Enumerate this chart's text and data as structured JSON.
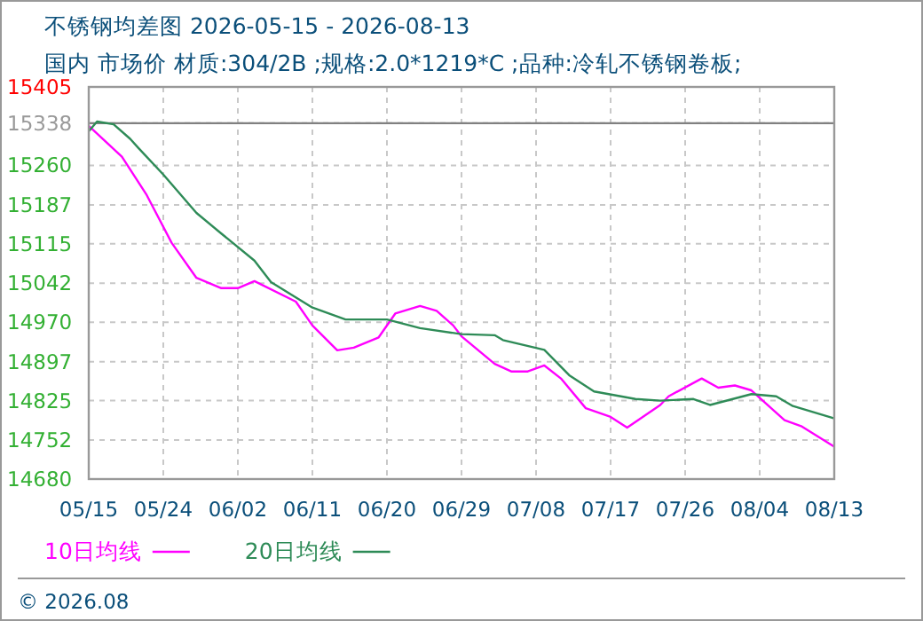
{
  "chart_data": {
    "type": "line",
    "title": "不锈钢均差图 2026-05-15 - 2026-08-13",
    "subtitle": "国内 市场价 材质:304/2B ;规格:2.0*1219*C ;品种:冷轧不锈钢卷板;",
    "annotations": [
      "© 2026.08"
    ],
    "xlim": [
      "2026-05-15",
      "2026-08-13"
    ],
    "xticks": [
      {
        "value": "2026-05-15",
        "label": "05/15"
      },
      {
        "value": "2026-05-24",
        "label": "05/24"
      },
      {
        "value": "2026-06-02",
        "label": "06/02"
      },
      {
        "value": "2026-06-11",
        "label": "06/11"
      },
      {
        "value": "2026-06-20",
        "label": "06/20"
      },
      {
        "value": "2026-06-29",
        "label": "06/29"
      },
      {
        "value": "2026-07-08",
        "label": "07/08"
      },
      {
        "value": "2026-07-17",
        "label": "07/17"
      },
      {
        "value": "2026-07-26",
        "label": "07/26"
      },
      {
        "value": "2026-08-04",
        "label": "08/04"
      },
      {
        "value": "2026-08-13",
        "label": "08/13"
      }
    ],
    "ylim": [
      14680,
      15405
    ],
    "yticks": [
      14680,
      14752,
      14825,
      14897,
      14970,
      15042,
      15115,
      15187,
      15260,
      15338,
      15405
    ],
    "grid": true,
    "legend": "bottom left",
    "marker": "none",
    "line_style": "solid",
    "ref_lines": [
      {
        "axis": "y",
        "value": 15338,
        "color": "#808080"
      }
    ],
    "series": [
      {
        "name": "10日均线",
        "color": "#ff00ff",
        "x": [
          "2026-05-15",
          "2026-05-19",
          "2026-05-22",
          "2026-05-25",
          "2026-05-28",
          "2026-05-31",
          "2026-06-02",
          "2026-06-04",
          "2026-06-09",
          "2026-06-11",
          "2026-06-14",
          "2026-06-16",
          "2026-06-19",
          "2026-06-21",
          "2026-06-24",
          "2026-06-26",
          "2026-06-28",
          "2026-06-29",
          "2026-07-03",
          "2026-07-05",
          "2026-07-07",
          "2026-07-09",
          "2026-07-11",
          "2026-07-14",
          "2026-07-17",
          "2026-07-19",
          "2026-07-23",
          "2026-07-24",
          "2026-07-28",
          "2026-07-30",
          "2026-08-01",
          "2026-08-03",
          "2026-08-07",
          "2026-08-09",
          "2026-08-13"
        ],
        "values": [
          15333,
          15276,
          15205,
          15117,
          15052,
          15033,
          15033,
          15046,
          15008,
          14964,
          14918,
          14923,
          14942,
          14986,
          15000,
          14991,
          14964,
          14944,
          14893,
          14879,
          14879,
          14890,
          14866,
          14811,
          14795,
          14775,
          14817,
          14833,
          14866,
          14849,
          14853,
          14844,
          14789,
          14778,
          14740
        ]
      },
      {
        "name": "20日均线",
        "color": "#2e8b57",
        "x": [
          "2026-05-15",
          "2026-05-16",
          "2026-05-18",
          "2026-05-20",
          "2026-05-21",
          "2026-05-24",
          "2026-05-28",
          "2026-05-31",
          "2026-06-04",
          "2026-06-06",
          "2026-06-11",
          "2026-06-15",
          "2026-06-20",
          "2026-06-24",
          "2026-06-29",
          "2026-07-03",
          "2026-07-04",
          "2026-07-09",
          "2026-07-12",
          "2026-07-15",
          "2026-07-20",
          "2026-07-23",
          "2026-07-27",
          "2026-07-29",
          "2026-08-03",
          "2026-08-06",
          "2026-08-08",
          "2026-08-13"
        ],
        "values": [
          15323,
          15341,
          15336,
          15309,
          15292,
          15243,
          15172,
          15134,
          15084,
          15044,
          14997,
          14975,
          14975,
          14959,
          14948,
          14946,
          14937,
          14919,
          14872,
          14842,
          14828,
          14825,
          14828,
          14817,
          14837,
          14833,
          14815,
          14792
        ]
      }
    ]
  }
}
